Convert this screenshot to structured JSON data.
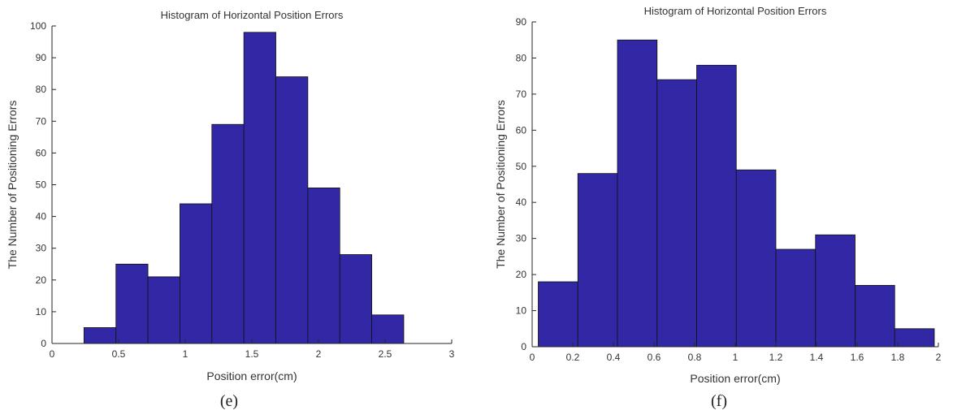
{
  "chart_data": [
    {
      "type": "bar",
      "panel_label": "(e)",
      "title": "Histogram of Horizontal Position Errors",
      "xlabel": "Position error(cm)",
      "ylabel": "The Number of Positioning Errors",
      "xlim": [
        0,
        3
      ],
      "ylim": [
        0,
        100
      ],
      "xticks": [
        "0",
        "0.5",
        "1",
        "1.5",
        "2",
        "2.5",
        "3"
      ],
      "xtick_values": [
        0,
        0.5,
        1,
        1.5,
        2,
        2.5,
        3
      ],
      "yticks": [
        "0",
        "10",
        "20",
        "30",
        "40",
        "50",
        "60",
        "70",
        "80",
        "90",
        "100"
      ],
      "ytick_values": [
        0,
        10,
        20,
        30,
        40,
        50,
        60,
        70,
        80,
        90,
        100
      ],
      "bin_edges": [
        0.24,
        0.48,
        0.72,
        0.96,
        1.2,
        1.44,
        1.68,
        1.92,
        2.16,
        2.4,
        2.64
      ],
      "values": [
        5,
        25,
        21,
        44,
        69,
        98,
        84,
        49,
        28,
        9
      ],
      "bar_color": "#3228a6",
      "grid": false
    },
    {
      "type": "bar",
      "panel_label": "(f)",
      "title": "Histogram of Horizontal Position Errors",
      "xlabel": "Position error(cm)",
      "ylabel": "The Number of Positioning Errors",
      "xlim": [
        0,
        2
      ],
      "ylim": [
        0,
        90
      ],
      "xticks": [
        "0",
        "0.2",
        "0.4",
        "0.6",
        "0.8",
        "1",
        "1.2",
        "1.4",
        "1.6",
        "1.8",
        "2"
      ],
      "xtick_values": [
        0,
        0.2,
        0.4,
        0.6,
        0.8,
        1,
        1.2,
        1.4,
        1.6,
        1.8,
        2
      ],
      "yticks": [
        "0",
        "10",
        "20",
        "30",
        "40",
        "50",
        "60",
        "70",
        "80",
        "90"
      ],
      "ytick_values": [
        0,
        10,
        20,
        30,
        40,
        50,
        60,
        70,
        80,
        90
      ],
      "bin_edges": [
        0.03,
        0.225,
        0.42,
        0.615,
        0.81,
        1.005,
        1.2,
        1.395,
        1.59,
        1.785,
        1.98
      ],
      "values": [
        18,
        48,
        85,
        74,
        78,
        49,
        27,
        31,
        17,
        5
      ],
      "bar_color": "#3228a6",
      "grid": false
    }
  ]
}
